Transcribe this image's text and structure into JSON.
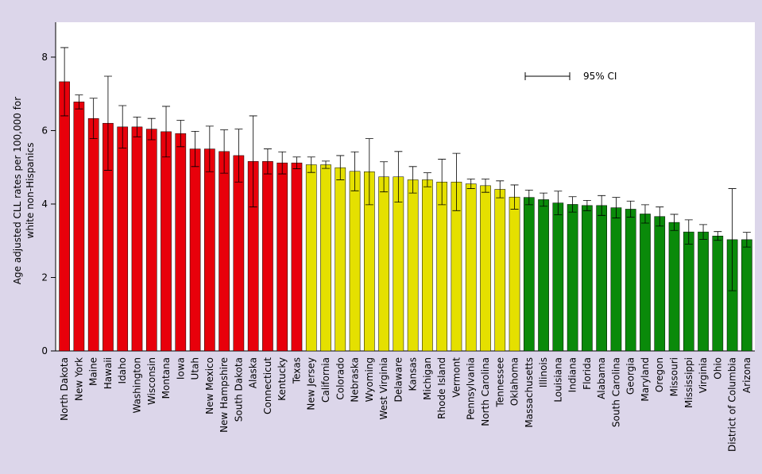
{
  "chart_data": {
    "type": "bar",
    "y_label_lines": [
      "Age adjusted CLL rates per 100,000 for",
      "white non-Hispanics"
    ],
    "ci_label": "95% CI",
    "categories": [
      "North Dakota",
      "New York",
      "Maine",
      "Hawaii",
      "Idaho",
      "Washington",
      "Wisconsin",
      "Montana",
      "Iowa",
      "Utah",
      "New Mexico",
      "New Hampshire",
      "South Dakota",
      "Alaska",
      "Connecticut",
      "Kentucky",
      "Texas",
      "New Jersey",
      "California",
      "Colorado",
      "Nebraska",
      "Wyoming",
      "West Virginia",
      "Delaware",
      "Kansas",
      "Michigan",
      "Rhode Island",
      "Vermont",
      "Pennsylvania",
      "North Carolina",
      "Tennessee",
      "Oklahoma",
      "Massachusetts",
      "Illinois",
      "Louisiana",
      "Indiana",
      "Florida",
      "Alabama",
      "South Carolina",
      "Georgia",
      "Maryland",
      "Oregon",
      "Missouri",
      "Mississippi",
      "Virginia",
      "Ohio",
      "District of Columbia",
      "Arizona"
    ],
    "values": [
      7.33,
      6.78,
      6.33,
      6.2,
      6.1,
      6.1,
      6.04,
      5.97,
      5.92,
      5.5,
      5.5,
      5.43,
      5.32,
      5.16,
      5.16,
      5.12,
      5.12,
      5.07,
      5.07,
      4.99,
      4.89,
      4.88,
      4.74,
      4.74,
      4.66,
      4.66,
      4.6,
      4.6,
      4.55,
      4.5,
      4.4,
      4.19,
      4.18,
      4.12,
      4.03,
      3.99,
      3.96,
      3.96,
      3.9,
      3.86,
      3.73,
      3.66,
      3.5,
      3.24,
      3.24,
      3.13,
      3.03,
      3.03
    ],
    "errors": [
      0.93,
      0.19,
      0.55,
      1.28,
      0.58,
      0.27,
      0.29,
      0.69,
      0.36,
      0.48,
      0.62,
      0.59,
      0.72,
      1.24,
      0.34,
      0.3,
      0.16,
      0.21,
      0.1,
      0.33,
      0.53,
      0.9,
      0.41,
      0.69,
      0.36,
      0.19,
      0.62,
      0.78,
      0.13,
      0.18,
      0.23,
      0.33,
      0.2,
      0.18,
      0.32,
      0.21,
      0.14,
      0.27,
      0.28,
      0.22,
      0.25,
      0.26,
      0.22,
      0.33,
      0.2,
      0.12,
      1.39,
      0.2
    ],
    "colors": [
      "#e8000b",
      "#e8000b",
      "#e8000b",
      "#e8000b",
      "#e8000b",
      "#e8000b",
      "#e8000b",
      "#e8000b",
      "#e8000b",
      "#e8000b",
      "#e8000b",
      "#e8000b",
      "#e8000b",
      "#e8000b",
      "#e8000b",
      "#e8000b",
      "#e8000b",
      "#e5e000",
      "#e5e000",
      "#e5e000",
      "#e5e000",
      "#e5e000",
      "#e5e000",
      "#e5e000",
      "#e5e000",
      "#e5e000",
      "#e5e000",
      "#e5e000",
      "#e5e000",
      "#e5e000",
      "#e5e000",
      "#e5e000",
      "#0a8a0a",
      "#0a8a0a",
      "#0a8a0a",
      "#0a8a0a",
      "#0a8a0a",
      "#0a8a0a",
      "#0a8a0a",
      "#0a8a0a",
      "#0a8a0a",
      "#0a8a0a",
      "#0a8a0a",
      "#0a8a0a",
      "#0a8a0a",
      "#0a8a0a",
      "#0a8a0a",
      "#0a8a0a"
    ],
    "ylim": [
      0,
      8.95
    ],
    "yticks": [
      0,
      2,
      4,
      6,
      8
    ]
  }
}
